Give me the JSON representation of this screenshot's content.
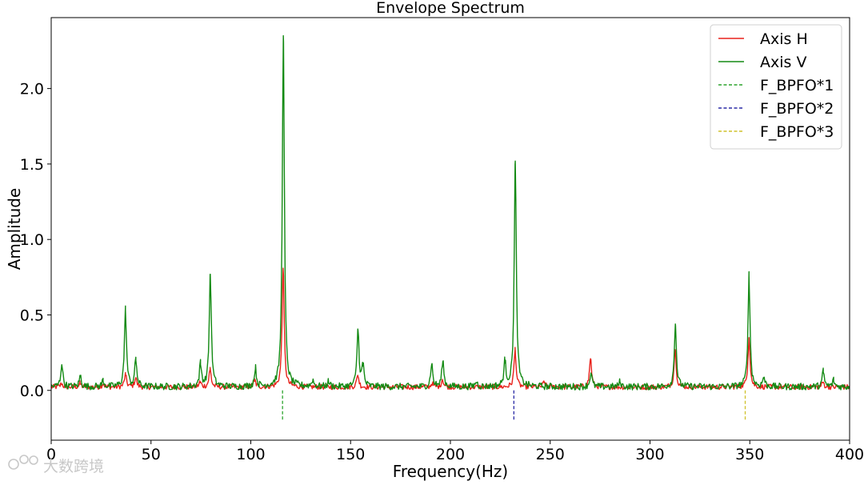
{
  "chart_data": {
    "type": "line",
    "title": "Envelope Spectrum",
    "xlabel": "Frequency(Hz)",
    "ylabel": "Amplitude",
    "xlim": [
      0,
      400
    ],
    "ylim": [
      -0.33,
      2.47
    ],
    "x_ticks": [
      0,
      50,
      100,
      150,
      200,
      250,
      300,
      350,
      400
    ],
    "x_tick_labels": [
      "0",
      "50",
      "100",
      "150",
      "200",
      "250",
      "300",
      "350",
      "400"
    ],
    "y_ticks": [
      0.0,
      0.5,
      1.0,
      1.5,
      2.0
    ],
    "y_tick_labels": [
      "0.0",
      "0.5",
      "1.0",
      "1.5",
      "2.0"
    ],
    "grid": false,
    "legend_position": "top-right",
    "baseline": 0.015,
    "series": [
      {
        "name": "Axis H",
        "color": "#e8221b",
        "peaks": [
          [
            5.2,
            0.04
          ],
          [
            14.5,
            0.04
          ],
          [
            26,
            0.04
          ],
          [
            37.2,
            0.1
          ],
          [
            42.3,
            0.08
          ],
          [
            74.6,
            0.05
          ],
          [
            79.6,
            0.14
          ],
          [
            102,
            0.06
          ],
          [
            116.2,
            0.81
          ],
          [
            153.6,
            0.1
          ],
          [
            190.8,
            0.04
          ],
          [
            196,
            0.07
          ],
          [
            232.4,
            0.27
          ],
          [
            247,
            0.05
          ],
          [
            270.2,
            0.21
          ],
          [
            312.6,
            0.27
          ],
          [
            349.6,
            0.35
          ],
          [
            386.7,
            0.05
          ]
        ]
      },
      {
        "name": "Axis V",
        "color": "#138a13",
        "peaks": [
          [
            5.3,
            0.17
          ],
          [
            14.6,
            0.09
          ],
          [
            26,
            0.06
          ],
          [
            37.2,
            0.53
          ],
          [
            42.4,
            0.2
          ],
          [
            74.8,
            0.17
          ],
          [
            79.7,
            0.77
          ],
          [
            102.3,
            0.14
          ],
          [
            116.3,
            2.35
          ],
          [
            131,
            0.06
          ],
          [
            139,
            0.05
          ],
          [
            153.7,
            0.4
          ],
          [
            156.2,
            0.16
          ],
          [
            190.6,
            0.17
          ],
          [
            196.2,
            0.19
          ],
          [
            213,
            0.05
          ],
          [
            227.3,
            0.18
          ],
          [
            232.5,
            1.52
          ],
          [
            270.4,
            0.11
          ],
          [
            285,
            0.05
          ],
          [
            312.7,
            0.44
          ],
          [
            349.6,
            0.76
          ],
          [
            357,
            0.08
          ],
          [
            386.8,
            0.12
          ],
          [
            392,
            0.06
          ]
        ]
      }
    ],
    "markers": [
      {
        "name": "F_BPFO*1",
        "x": 115.9,
        "y0": -0.2,
        "y1": 0.0,
        "color": "#2ca42c",
        "dash": true
      },
      {
        "name": "F_BPFO*2",
        "x": 231.8,
        "y0": -0.2,
        "y1": 0.0,
        "color": "#2a2aa6",
        "dash": true
      },
      {
        "name": "F_BPFO*3",
        "x": 347.7,
        "y0": -0.2,
        "y1": 0.0,
        "color": "#cfc12a",
        "dash": true
      }
    ]
  },
  "watermark": {
    "text": "大数跨境"
  }
}
